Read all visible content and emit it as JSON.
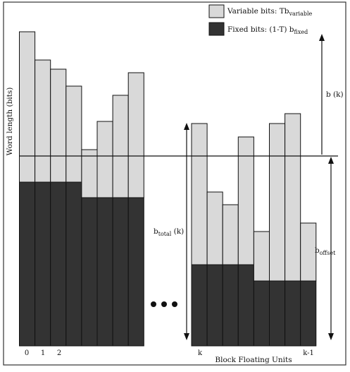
{
  "legend": {
    "variable_label": "Variable bits: Tb",
    "variable_sub": "variable",
    "fixed_label": "Fixed bits: (1-T) b",
    "fixed_sub": "fixed"
  },
  "axis": {
    "ylabel": "Word length (bits)",
    "xlabel": "Block Floating Units"
  },
  "ticks": {
    "t0": "0",
    "t1": "1",
    "t2": "2",
    "tk": "k",
    "tk1": "k-1"
  },
  "annotations": {
    "bk": "b (k)",
    "btotal_main": "b",
    "btotal_sub": "total",
    "btotal_tail": " (k)",
    "boffset_main": "b",
    "boffset_sub": "offset"
  },
  "colors": {
    "variable": "#d9d9d9",
    "fixed": "#333333",
    "line": "#111111"
  },
  "ellipsis_dots": 3,
  "chart_data": {
    "type": "bar",
    "stacked": true,
    "series": [
      {
        "name": "Variable bits: Tb_variable"
      },
      {
        "name": "Fixed bits: (1-T) b_fixed"
      }
    ],
    "left_group_top": [
      445,
      405,
      392,
      368,
      278,
      318,
      355,
      387
    ],
    "left_group_fixed": [
      232,
      232,
      232,
      232,
      210,
      210,
      210,
      210
    ],
    "right_group_top": [
      315,
      218,
      200,
      296,
      162,
      315,
      329,
      174
    ],
    "right_group_fixed": [
      115,
      115,
      115,
      115,
      92,
      92,
      92,
      92
    ],
    "offset_level": 269
  }
}
